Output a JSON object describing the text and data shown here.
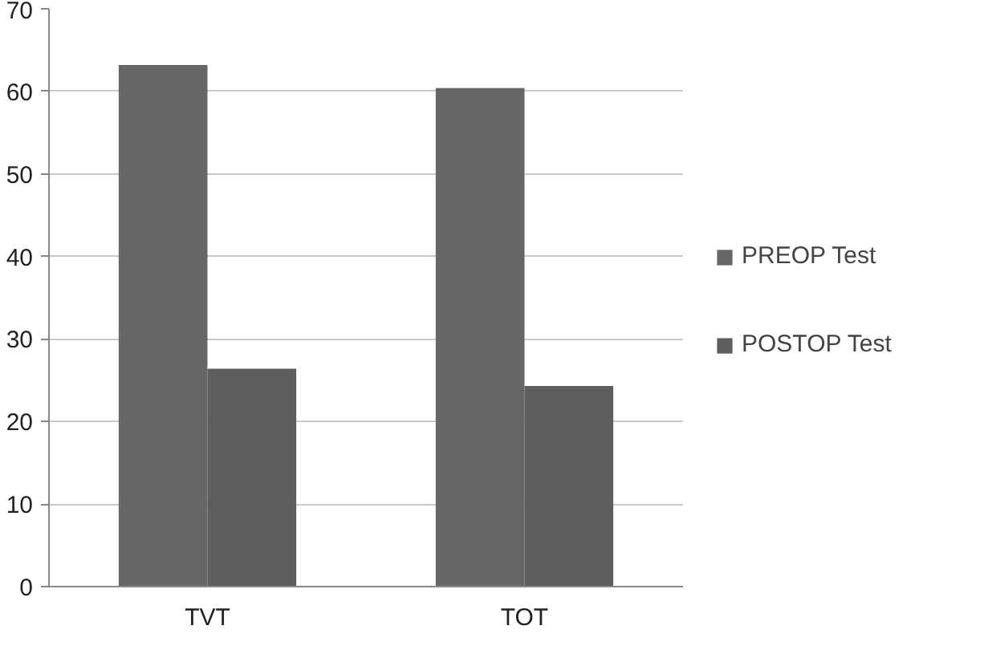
{
  "chart_data": {
    "type": "bar",
    "categories": [
      "TVT",
      "TOT"
    ],
    "series": [
      {
        "name": "PREOP Test",
        "color": "#666666",
        "values": [
          63.2,
          60.4
        ]
      },
      {
        "name": "POSTOP Test",
        "color": "#5e5e5e",
        "values": [
          26.4,
          24.3
        ]
      }
    ],
    "ylim": [
      0,
      70
    ],
    "yticks": [
      0,
      10,
      20,
      30,
      40,
      50,
      60,
      70
    ],
    "grid": "y",
    "legend": "right"
  }
}
